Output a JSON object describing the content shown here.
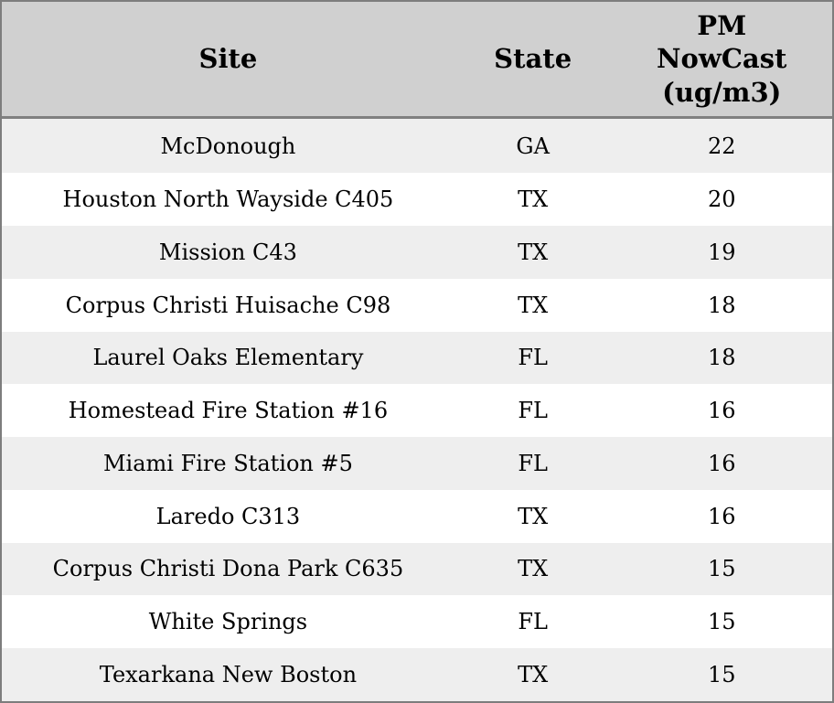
{
  "header": {
    "site_label": "Site",
    "state_label": "State",
    "pm_label": "PM\nNowCast\n(ug/m3)"
  },
  "chart_data": {
    "type": "table",
    "title": "",
    "columns": [
      "Site",
      "State",
      "PM NowCast (ug/m3)"
    ],
    "rows": [
      [
        "McDonough",
        "GA",
        22
      ],
      [
        "Houston North Wayside C405",
        "TX",
        20
      ],
      [
        "Mission C43",
        "TX",
        19
      ],
      [
        "Corpus Christi Huisache C98",
        "TX",
        18
      ],
      [
        "Laurel Oaks Elementary",
        "FL",
        18
      ],
      [
        "Homestead Fire Station #16",
        "FL",
        16
      ],
      [
        "Miami Fire Station #5",
        "FL",
        16
      ],
      [
        "Laredo C313",
        "TX",
        16
      ],
      [
        "Corpus Christi Dona Park C635",
        "TX",
        15
      ],
      [
        "White Springs",
        "FL",
        15
      ],
      [
        "Texarkana New Boston",
        "TX",
        15
      ]
    ],
    "layout": {
      "grid": false,
      "row_striping": true,
      "text_align": "center"
    }
  },
  "colors": {
    "header_bg": "#d0d0d0",
    "row_odd_bg": "#eeeeee",
    "row_even_bg": "#ffffff",
    "border": "#7d7d7d",
    "header_divider": "#808080",
    "text": "#000000"
  }
}
